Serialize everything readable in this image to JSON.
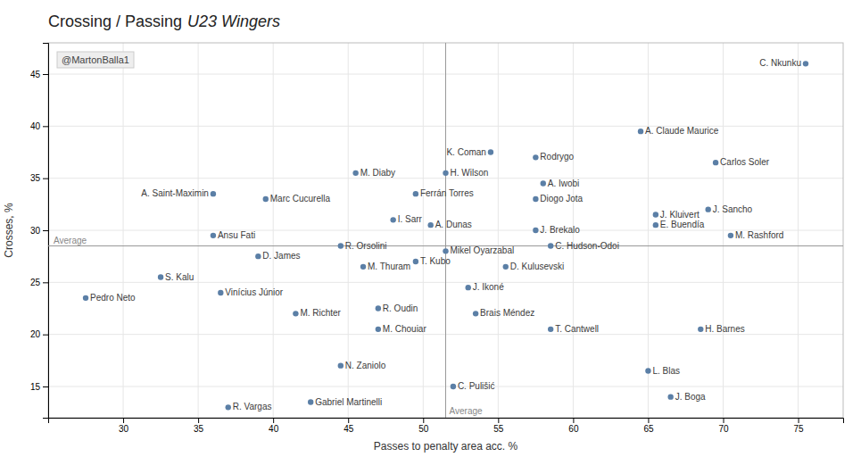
{
  "chart_data": {
    "type": "scatter",
    "title": "Crossing / Passing",
    "subtitle": "U23 Wingers",
    "x_label": "Passes to penalty area acc. %",
    "y_label": "Crosses, %",
    "annotations": [
      "@MartonBalla1"
    ],
    "reference_lines": [
      {
        "axis": "x",
        "value": 51.5,
        "label": "Average"
      },
      {
        "axis": "y",
        "value": 28.5,
        "label": "Average"
      }
    ],
    "xlim": [
      25,
      78
    ],
    "ylim": [
      12,
      48
    ],
    "xticks": [
      30,
      35,
      40,
      45,
      50,
      55,
      60,
      65,
      70,
      75
    ],
    "yticks": [
      15,
      20,
      25,
      30,
      35,
      40,
      45
    ],
    "grid": true,
    "color": "#5b7fa6",
    "labels": [
      "C. Nkunku",
      "A. Claude Maurice",
      "Carlos Soler",
      "Rodrygo",
      "K. Coman",
      "H. Wilson",
      "A. Iwobi",
      "M. Diaby",
      "Ferrán Torres",
      "Diogo Jota",
      "A. Saint-Maximin",
      "Marc Cucurella",
      "J. Kluivert",
      "J. Sancho",
      "I. Sarr",
      "A. Dunas",
      "J. Brekalo",
      "E. Buendía",
      "M. Rashford",
      "R. Orsolini",
      "Ansu Fati",
      "C. Hudson-Odoi",
      "Mikel Oyarzabal",
      "D. James",
      "D. Kulusevski",
      "M. Thuram",
      "T. Kubo",
      "J. Ikoné",
      "S. Kalu",
      "Vinícius Júnior",
      "Brais Méndez",
      "R. Oudin",
      "Pedro Neto",
      "M. Richter",
      "T. Cantwell",
      "M. Chouiar",
      "H. Barnes",
      "N. Zaniolo",
      "L. Blas",
      "C. Pulišić",
      "J. Boga",
      "R. Vargas",
      "Gabriel Martinelli"
    ],
    "x": [
      75.5,
      64.5,
      69.5,
      57.5,
      54.5,
      51.5,
      58.0,
      45.5,
      49.5,
      57.5,
      36.0,
      39.5,
      65.5,
      69.0,
      48.0,
      50.5,
      57.5,
      65.5,
      70.5,
      44.5,
      36.0,
      58.5,
      51.5,
      39.0,
      55.5,
      46.0,
      49.5,
      53.0,
      32.5,
      36.5,
      53.5,
      47.0,
      27.5,
      41.5,
      58.5,
      47.0,
      68.5,
      44.5,
      65.0,
      52.0,
      66.5,
      37.0,
      42.5
    ],
    "values": [
      46.0,
      39.5,
      36.5,
      37.0,
      37.5,
      35.5,
      34.5,
      35.5,
      33.5,
      33.0,
      33.5,
      33.0,
      31.5,
      32.0,
      31.0,
      30.5,
      30.0,
      30.5,
      29.5,
      28.5,
      29.5,
      28.5,
      28.0,
      27.5,
      26.5,
      26.5,
      27.0,
      24.5,
      25.5,
      24.0,
      22.0,
      22.5,
      23.5,
      22.0,
      20.5,
      20.5,
      20.5,
      17.0,
      16.5,
      15.0,
      14.0,
      13.0,
      13.5
    ]
  }
}
